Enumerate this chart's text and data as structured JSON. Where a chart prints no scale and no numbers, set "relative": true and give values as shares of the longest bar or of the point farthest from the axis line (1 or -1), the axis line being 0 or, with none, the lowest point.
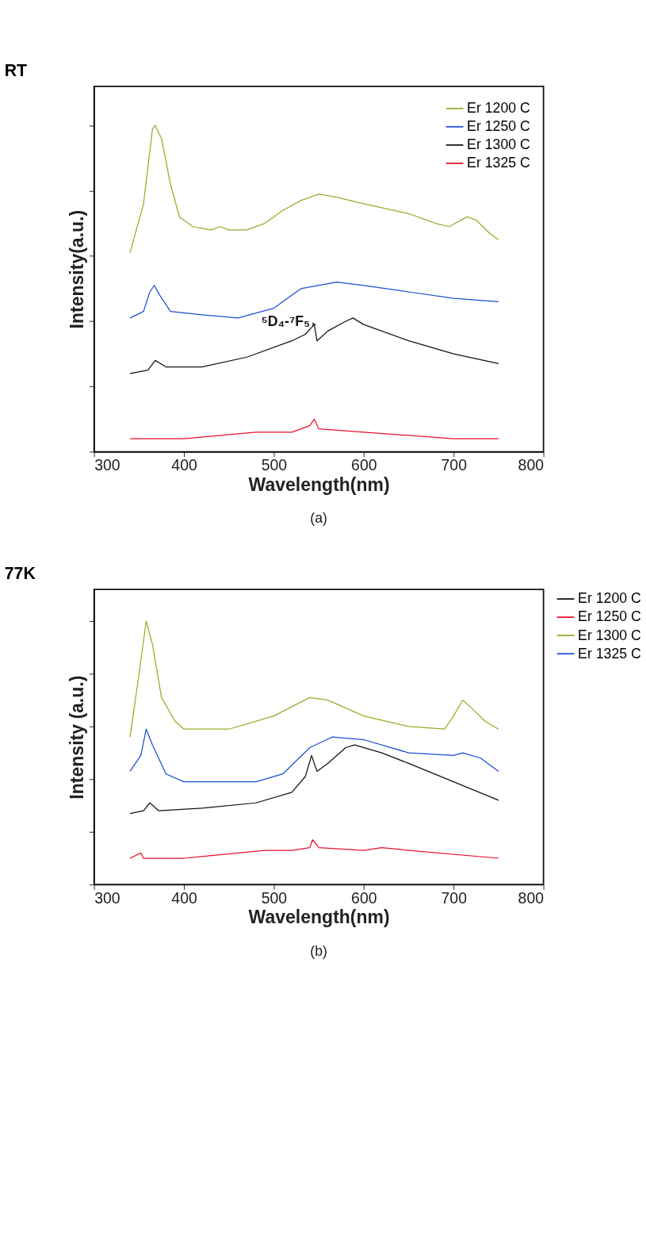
{
  "chart_data": [
    {
      "type": "line",
      "title": "RT",
      "xlabel": "Wavelength(nm)",
      "ylabel": "Intensity(a.u.)",
      "relative": true,
      "xlim": [
        300,
        800
      ],
      "xticks": [
        300,
        400,
        500,
        600,
        700,
        800
      ],
      "tick_labels": "x",
      "legend": "top right",
      "grid": false,
      "annotations": [
        {
          "text": "⁵D₄-⁷F₅",
          "x": 545,
          "y": 0.39
        },
        "(a)"
      ],
      "series": [
        {
          "name": "Er 1200 C",
          "color": "#9aaa28",
          "x": [
            340,
            355,
            365,
            368,
            375,
            385,
            395,
            410,
            430,
            440,
            450,
            470,
            490,
            510,
            530,
            550,
            570,
            600,
            650,
            680,
            695,
            715,
            725,
            740,
            750
          ],
          "values": [
            0.61,
            0.76,
            0.99,
            1.0,
            0.96,
            0.82,
            0.72,
            0.69,
            0.68,
            0.69,
            0.68,
            0.68,
            0.7,
            0.74,
            0.77,
            0.79,
            0.78,
            0.76,
            0.73,
            0.7,
            0.69,
            0.72,
            0.71,
            0.67,
            0.65
          ]
        },
        {
          "name": "Er 1250 C",
          "color": "#1a4fd0",
          "x": [
            340,
            355,
            362,
            367,
            373,
            385,
            420,
            460,
            500,
            530,
            570,
            600,
            650,
            700,
            750
          ],
          "values": [
            0.41,
            0.43,
            0.49,
            0.51,
            0.48,
            0.43,
            0.42,
            0.41,
            0.44,
            0.5,
            0.52,
            0.51,
            0.49,
            0.47,
            0.46
          ]
        },
        {
          "name": "Er 1300 C",
          "color": "#111111",
          "x": [
            340,
            360,
            368,
            380,
            420,
            470,
            520,
            535,
            545,
            548,
            560,
            580,
            588,
            600,
            650,
            700,
            750
          ],
          "values": [
            0.24,
            0.25,
            0.28,
            0.26,
            0.26,
            0.29,
            0.34,
            0.36,
            0.39,
            0.34,
            0.37,
            0.4,
            0.41,
            0.39,
            0.34,
            0.3,
            0.27
          ]
        },
        {
          "name": "Er 1325 C",
          "color": "#e8102a",
          "x": [
            340,
            400,
            480,
            520,
            540,
            545,
            550,
            600,
            650,
            700,
            750
          ],
          "values": [
            0.04,
            0.04,
            0.06,
            0.06,
            0.08,
            0.1,
            0.07,
            0.06,
            0.05,
            0.04,
            0.04
          ]
        }
      ]
    },
    {
      "type": "line",
      "title": "77K",
      "xlabel": "Wavelength(nm)",
      "ylabel": "Intensity (a.u.)",
      "relative": true,
      "xlim": [
        300,
        800
      ],
      "xticks": [
        300,
        400,
        500,
        600,
        700,
        800
      ],
      "tick_labels": "x",
      "legend": "right",
      "grid": false,
      "annotations": [
        "(b)"
      ],
      "series": [
        {
          "name": "Er 1200 C",
          "color": "#111111",
          "x": [
            340,
            355,
            362,
            372,
            420,
            480,
            520,
            535,
            542,
            548,
            560,
            580,
            590,
            620,
            650,
            700,
            750
          ],
          "values": [
            0.27,
            0.28,
            0.31,
            0.28,
            0.29,
            0.31,
            0.35,
            0.41,
            0.49,
            0.43,
            0.46,
            0.52,
            0.53,
            0.5,
            0.46,
            0.39,
            0.32
          ]
        },
        {
          "name": "Er 1250 C",
          "color": "#e8102a",
          "x": [
            340,
            352,
            355,
            400,
            490,
            520,
            540,
            543,
            550,
            600,
            620,
            650,
            750
          ],
          "values": [
            0.1,
            0.12,
            0.1,
            0.1,
            0.13,
            0.13,
            0.14,
            0.17,
            0.14,
            0.13,
            0.14,
            0.13,
            0.1
          ]
        },
        {
          "name": "Er 1300 C",
          "color": "#9aaa28",
          "x": [
            340,
            350,
            358,
            365,
            375,
            390,
            400,
            450,
            500,
            540,
            560,
            600,
            650,
            690,
            700,
            710,
            720,
            735,
            750
          ],
          "values": [
            0.56,
            0.8,
            1.0,
            0.91,
            0.71,
            0.62,
            0.59,
            0.59,
            0.64,
            0.71,
            0.7,
            0.64,
            0.6,
            0.59,
            0.64,
            0.7,
            0.67,
            0.62,
            0.59
          ]
        },
        {
          "name": "Er 1325 C",
          "color": "#1a4fd0",
          "x": [
            340,
            352,
            358,
            365,
            380,
            400,
            480,
            510,
            540,
            565,
            600,
            650,
            700,
            710,
            730,
            750
          ],
          "values": [
            0.43,
            0.49,
            0.59,
            0.53,
            0.42,
            0.39,
            0.39,
            0.42,
            0.52,
            0.56,
            0.55,
            0.5,
            0.49,
            0.5,
            0.48,
            0.43
          ]
        }
      ]
    }
  ]
}
